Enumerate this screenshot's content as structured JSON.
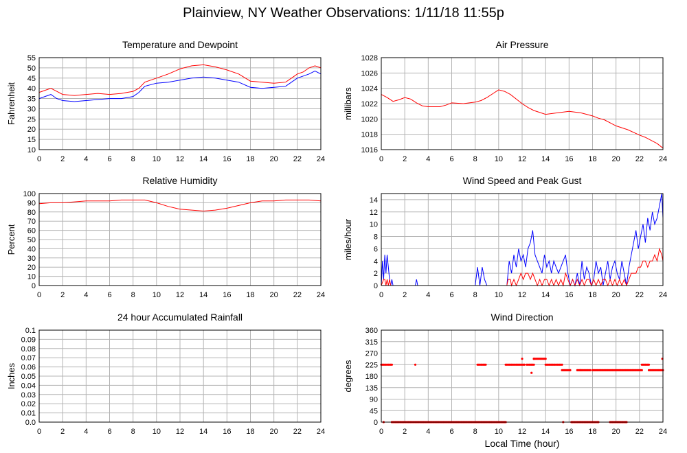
{
  "page": {
    "title": "Plainview, NY Weather Observations: 1/11/18 11:55p"
  },
  "chart_data": [
    {
      "type": "line",
      "title": "Temperature and Dewpoint",
      "ylabel": "Fahrenheit",
      "xlabel": "",
      "xlim": [
        0,
        24
      ],
      "ylim": [
        10,
        55
      ],
      "xticks": [
        0,
        2,
        4,
        6,
        8,
        10,
        12,
        14,
        16,
        18,
        20,
        22,
        24
      ],
      "yticks": [
        10,
        15,
        20,
        25,
        30,
        35,
        40,
        45,
        50,
        55
      ],
      "grid": true,
      "series": [
        {
          "color": "#ff0000",
          "x": [
            0,
            0.5,
            1,
            1.5,
            2,
            3,
            4,
            5,
            6,
            7,
            8,
            8.5,
            9,
            10,
            11,
            12,
            13,
            14,
            15,
            16,
            17,
            18,
            19,
            20,
            21,
            21.5,
            22,
            22.5,
            23,
            23.5,
            24
          ],
          "y": [
            38,
            39,
            40,
            38.5,
            37,
            36.5,
            37,
            37.5,
            37,
            37.5,
            38.5,
            40,
            43,
            45,
            47,
            49.5,
            51,
            51.5,
            50.5,
            49,
            47,
            43.5,
            43,
            42.5,
            43,
            45,
            47,
            48,
            50,
            51,
            50
          ]
        },
        {
          "color": "#0000ff",
          "x": [
            0,
            0.5,
            1,
            1.5,
            2,
            3,
            4,
            5,
            6,
            7,
            8,
            8.5,
            9,
            10,
            11,
            12,
            13,
            14,
            15,
            16,
            17,
            18,
            19,
            20,
            21,
            21.5,
            22,
            22.5,
            23,
            23.5,
            24
          ],
          "y": [
            35,
            36,
            37,
            35,
            34,
            33.5,
            34,
            34.5,
            35,
            35,
            36,
            38,
            41,
            42.5,
            43,
            44,
            45,
            45.5,
            45,
            44,
            43,
            40.5,
            40,
            40.5,
            41,
            43,
            45,
            46,
            47,
            48.5,
            47
          ]
        }
      ]
    },
    {
      "type": "line",
      "title": "Air Pressure",
      "ylabel": "millibars",
      "xlabel": "",
      "xlim": [
        0,
        24
      ],
      "ylim": [
        1016,
        1028
      ],
      "xticks": [
        0,
        2,
        4,
        6,
        8,
        10,
        12,
        14,
        16,
        18,
        20,
        22,
        24
      ],
      "yticks": [
        1016,
        1018,
        1020,
        1022,
        1024,
        1026,
        1028
      ],
      "grid": true,
      "series": [
        {
          "color": "#ff0000",
          "x": [
            0,
            0.5,
            1,
            1.5,
            2,
            2.5,
            3,
            3.5,
            4,
            5,
            5.5,
            6,
            7,
            8,
            8.5,
            9,
            9.5,
            10,
            10.5,
            11,
            12,
            12.5,
            13,
            14,
            15,
            16,
            17,
            18,
            18.5,
            19,
            20,
            21,
            22,
            22.5,
            23,
            23.5,
            24
          ],
          "y": [
            1023.2,
            1022.8,
            1022.3,
            1022.5,
            1022.8,
            1022.6,
            1022.1,
            1021.7,
            1021.6,
            1021.6,
            1021.8,
            1022.1,
            1022,
            1022.2,
            1022.4,
            1022.8,
            1023.3,
            1023.8,
            1023.6,
            1023.2,
            1022,
            1021.5,
            1021.1,
            1020.6,
            1020.8,
            1021.0,
            1020.8,
            1020.4,
            1020.1,
            1019.9,
            1019.1,
            1018.6,
            1017.9,
            1017.6,
            1017.2,
            1016.8,
            1016.2
          ]
        }
      ]
    },
    {
      "type": "line",
      "title": "Relative Humidity",
      "ylabel": "Percent",
      "xlabel": "",
      "xlim": [
        0,
        24
      ],
      "ylim": [
        0,
        100
      ],
      "xticks": [
        0,
        2,
        4,
        6,
        8,
        10,
        12,
        14,
        16,
        18,
        20,
        22,
        24
      ],
      "yticks": [
        0,
        10,
        20,
        30,
        40,
        50,
        60,
        70,
        80,
        90,
        100
      ],
      "grid": true,
      "series": [
        {
          "color": "#ff0000",
          "x": [
            0,
            1,
            2,
            3,
            4,
            5,
            6,
            7,
            8,
            9,
            10,
            11,
            12,
            13,
            14,
            15,
            16,
            17,
            18,
            19,
            20,
            21,
            22,
            23,
            24
          ],
          "y": [
            89,
            90,
            90,
            91,
            92,
            92,
            92,
            93,
            93,
            93,
            90,
            86,
            83,
            82,
            81,
            82,
            84,
            87,
            90,
            92,
            92,
            93,
            93,
            93,
            92
          ]
        }
      ]
    },
    {
      "type": "line",
      "title": "Wind Speed and Peak Gust",
      "ylabel": "miles/hour",
      "xlabel": "",
      "xlim": [
        0,
        24
      ],
      "ylim": [
        0,
        15
      ],
      "xticks": [
        0,
        2,
        4,
        6,
        8,
        10,
        12,
        14,
        16,
        18,
        20,
        22,
        24
      ],
      "yticks": [
        0,
        2,
        4,
        6,
        8,
        10,
        12,
        14
      ],
      "grid": true,
      "series": [
        {
          "color": "#0000ff",
          "x": [
            0,
            0.1,
            0.2,
            0.3,
            0.4,
            0.5,
            0.6,
            0.7,
            0.8,
            0.9,
            1.0,
            2.9,
            3.0,
            3.1,
            8.0,
            8.2,
            8.4,
            8.6,
            8.8,
            9.0,
            10.7,
            10.9,
            11.1,
            11.3,
            11.5,
            11.7,
            11.9,
            12.1,
            12.3,
            12.5,
            12.7,
            12.9,
            13.1,
            13.3,
            13.5,
            13.7,
            13.9,
            14.1,
            14.3,
            14.5,
            14.7,
            14.9,
            15.1,
            15.3,
            15.5,
            15.7,
            15.9,
            16.1,
            16.3,
            16.5,
            16.7,
            16.9,
            17.1,
            17.3,
            17.5,
            17.7,
            17.9,
            18.1,
            18.3,
            18.5,
            18.7,
            18.9,
            19.1,
            19.3,
            19.5,
            19.7,
            19.9,
            20.1,
            20.3,
            20.5,
            20.7,
            20.9,
            21.1,
            21.3,
            21.5,
            21.7,
            21.9,
            22.1,
            22.3,
            22.5,
            22.7,
            22.9,
            23.1,
            23.3,
            23.5,
            23.7,
            23.9,
            24.0
          ],
          "y": [
            0,
            4,
            1,
            5,
            2,
            5,
            3,
            1,
            0,
            1,
            0,
            0,
            1,
            0,
            0,
            3,
            0,
            3,
            1,
            0,
            0,
            4,
            2,
            5,
            3,
            6,
            4,
            5,
            3,
            6,
            7,
            9,
            5,
            4,
            3,
            2,
            5,
            3,
            4,
            2,
            4,
            3,
            2,
            3,
            4,
            5,
            2,
            0,
            1,
            0,
            2,
            0,
            4,
            1,
            3,
            2,
            0,
            1,
            4,
            2,
            3,
            0,
            2,
            4,
            1,
            3,
            4,
            2,
            1,
            4,
            2,
            0,
            3,
            5,
            7,
            9,
            6,
            8,
            10,
            7,
            11,
            9,
            12,
            10,
            11,
            13,
            15,
            11
          ]
        },
        {
          "color": "#ff0000",
          "x": [
            0,
            0.2,
            0.3,
            0.4,
            0.5,
            0.6,
            0.7,
            0.8,
            1.0,
            10.7,
            10.8,
            11.0,
            11.1,
            11.3,
            11.5,
            11.7,
            11.9,
            12.1,
            12.3,
            12.5,
            12.7,
            12.9,
            13.1,
            13.3,
            13.5,
            13.7,
            13.9,
            14.1,
            14.3,
            14.5,
            14.7,
            14.9,
            15.1,
            15.3,
            15.5,
            15.7,
            15.9,
            16.1,
            16.3,
            16.5,
            16.7,
            16.9,
            17.1,
            17.3,
            17.5,
            17.7,
            17.9,
            18.1,
            18.3,
            18.5,
            18.7,
            18.9,
            19.1,
            19.3,
            19.5,
            19.7,
            19.9,
            20.1,
            20.3,
            20.5,
            20.7,
            20.9,
            21.1,
            21.3,
            21.5,
            21.7,
            21.9,
            22.1,
            22.3,
            22.5,
            22.7,
            22.9,
            23.1,
            23.3,
            23.5,
            23.7,
            23.9,
            24.0
          ],
          "y": [
            0,
            1,
            1,
            0,
            1,
            0,
            1,
            0,
            0,
            0,
            1,
            1,
            0,
            1,
            0,
            1,
            2,
            1,
            2,
            2,
            1,
            2,
            1,
            0,
            1,
            0,
            1,
            1,
            0,
            1,
            0,
            1,
            0,
            1,
            0,
            2,
            1,
            0,
            1,
            0,
            1,
            0,
            1,
            0,
            1,
            1,
            0,
            1,
            0,
            1,
            0,
            1,
            1,
            0,
            1,
            0,
            1,
            0,
            1,
            0,
            1,
            0,
            1,
            2,
            2,
            2,
            3,
            3,
            4,
            4,
            3,
            4,
            4,
            5,
            4,
            6,
            5,
            4
          ]
        }
      ]
    },
    {
      "type": "line",
      "title": "24 hour Accumulated Rainfall",
      "ylabel": "Inches",
      "xlabel": "",
      "xlim": [
        0,
        24
      ],
      "ylim": [
        0,
        0.1
      ],
      "xticks": [
        0,
        2,
        4,
        6,
        8,
        10,
        12,
        14,
        16,
        18,
        20,
        22,
        24
      ],
      "yticks": [
        0.0,
        0.01,
        0.02,
        0.03,
        0.04,
        0.05,
        0.06,
        0.07,
        0.08,
        0.09,
        0.1
      ],
      "ytick_labels": [
        "0.0",
        "0.01",
        "0.02",
        "0.03",
        "0.04",
        "0.05",
        "0.06",
        "0.07",
        "0.08",
        "0.09",
        "0.1"
      ],
      "grid": true,
      "series": [
        {
          "color": "#ff00ff",
          "x": [
            0,
            24
          ],
          "y": [
            0,
            0
          ]
        }
      ]
    },
    {
      "type": "scatter",
      "title": "Wind Direction",
      "ylabel": "degrees",
      "xlabel": "Local Time (hour)",
      "xlim": [
        0,
        24
      ],
      "ylim": [
        0,
        360
      ],
      "xticks": [
        0,
        2,
        4,
        6,
        8,
        10,
        12,
        14,
        16,
        18,
        20,
        22,
        24
      ],
      "yticks": [
        0,
        45,
        90,
        135,
        180,
        225,
        270,
        315,
        360
      ],
      "grid": true,
      "runs": [
        {
          "from": 0.0,
          "to": 0.9,
          "value": 225
        },
        {
          "from": 0.9,
          "to": 8.0,
          "value": 0
        },
        {
          "from": 8.2,
          "to": 8.4,
          "value": 225
        },
        {
          "from": 8.5,
          "to": 8.9,
          "value": 225
        },
        {
          "from": 8.0,
          "to": 10.6,
          "value": 0
        },
        {
          "from": 10.6,
          "to": 12.2,
          "value": 225
        },
        {
          "from": 12.4,
          "to": 13.0,
          "value": 225
        },
        {
          "from": 13.0,
          "to": 14.0,
          "value": 248
        },
        {
          "from": 14.0,
          "to": 15.4,
          "value": 225
        },
        {
          "from": 15.4,
          "to": 16.1,
          "value": 203
        },
        {
          "from": 16.2,
          "to": 18.5,
          "value": 0
        },
        {
          "from": 16.7,
          "to": 17.8,
          "value": 203
        },
        {
          "from": 18.0,
          "to": 22.2,
          "value": 203
        },
        {
          "from": 19.5,
          "to": 20.9,
          "value": 0
        },
        {
          "from": 22.2,
          "to": 22.8,
          "value": 225
        },
        {
          "from": 22.8,
          "to": 24.0,
          "value": 203
        }
      ],
      "points": [
        {
          "x": 0.2,
          "y": 0
        },
        {
          "x": 2.9,
          "y": 225
        },
        {
          "x": 12.0,
          "y": 248
        },
        {
          "x": 12.8,
          "y": 193
        },
        {
          "x": 13.0,
          "y": 248
        },
        {
          "x": 15.5,
          "y": 0
        },
        {
          "x": 17.0,
          "y": 203
        },
        {
          "x": 23.95,
          "y": 248
        }
      ],
      "color": "#ff0000"
    }
  ]
}
